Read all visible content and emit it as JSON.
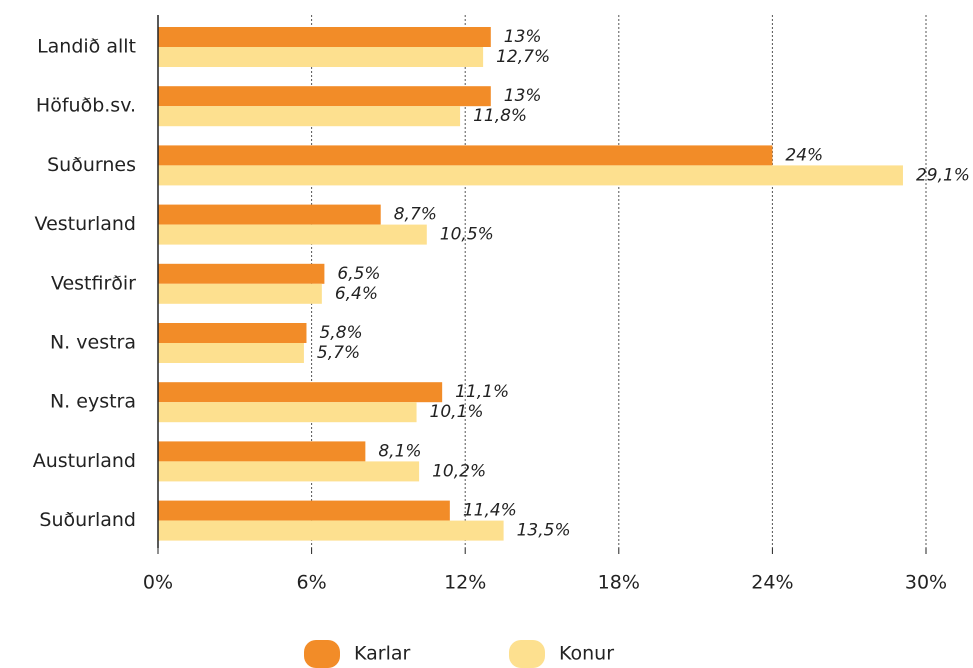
{
  "chart_data": {
    "type": "bar",
    "orientation": "horizontal",
    "categories": [
      "Landið allt",
      "Höfuðb.sv.",
      "Suðurnes",
      "Vesturland",
      "Vestfirðir",
      "N. vestra",
      "N. eystra",
      "Austurland",
      "Suðurland"
    ],
    "series": [
      {
        "name": "Karlar",
        "color": "#f28c28",
        "values": [
          13,
          13,
          24,
          8.7,
          6.5,
          5.8,
          11.1,
          8.1,
          11.4
        ],
        "value_labels": [
          "13%",
          "13%",
          "24%",
          "8,7%",
          "6,5%",
          "5,8%",
          "11,1%",
          "8,1%",
          "11,4%"
        ]
      },
      {
        "name": "Konur",
        "color": "#fde08f",
        "values": [
          12.7,
          11.8,
          29.1,
          10.5,
          6.4,
          5.7,
          10.1,
          10.2,
          13.5
        ],
        "value_labels": [
          "12,7%",
          "11,8%",
          "29,1%",
          "10,5%",
          "6,4%",
          "5,7%",
          "10,1%",
          "10,2%",
          "13,5%"
        ]
      }
    ],
    "xlim": [
      0,
      30
    ],
    "xticks": [
      {
        "value": 0,
        "label": "0%"
      },
      {
        "value": 6,
        "label": "6%"
      },
      {
        "value": 12,
        "label": "12%"
      },
      {
        "value": 18,
        "label": "18%"
      },
      {
        "value": 24,
        "label": "24%"
      },
      {
        "value": 30,
        "label": "30%"
      }
    ],
    "grid": true,
    "legend": "bottom"
  }
}
